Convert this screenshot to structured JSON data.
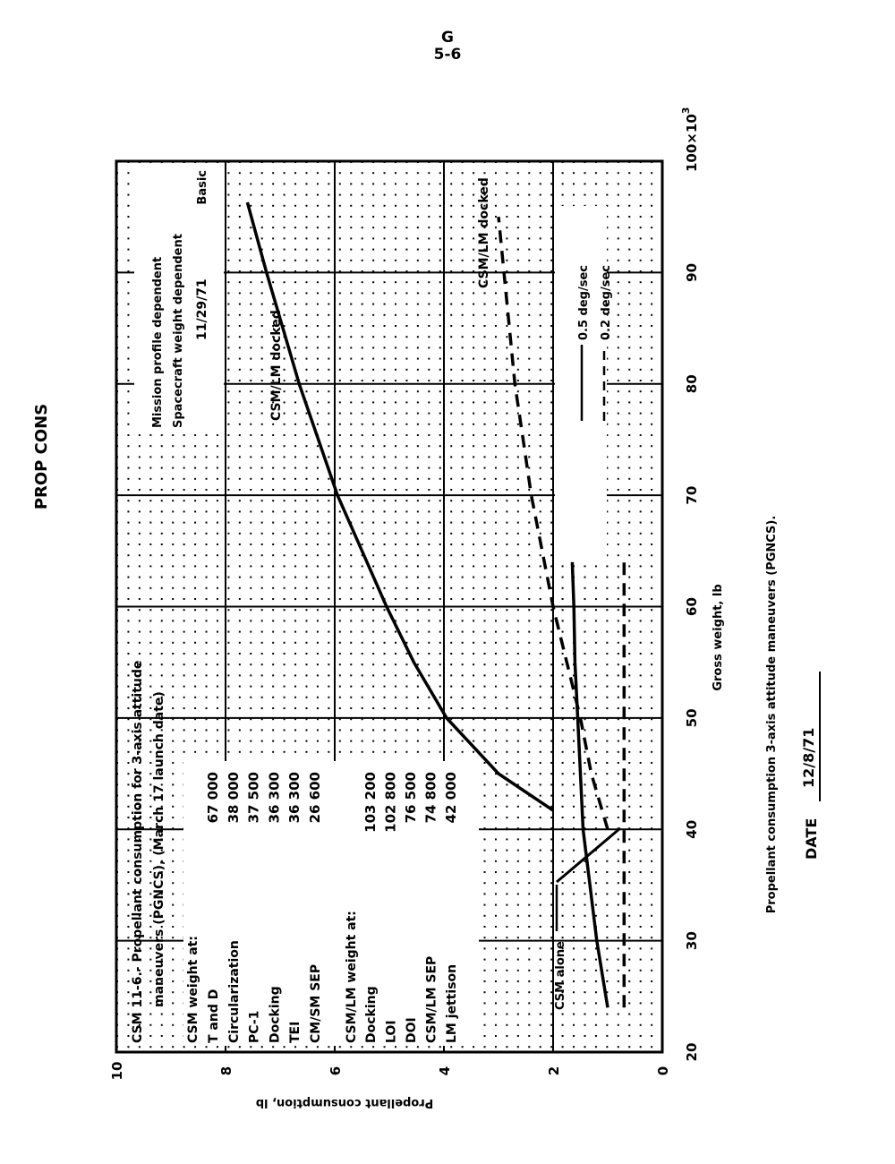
{
  "header": {
    "section_letter": "G",
    "page_number": "5-6",
    "section_title": "PROP CONS"
  },
  "footer": {
    "caption": "Propellant consumption 3-axis attitude maneuvers (PGNCS).",
    "date_label": "DATE",
    "date_value": "12/8/71"
  },
  "chart_data": {
    "type": "line",
    "orientation": "page rotated 90° counterclockwise",
    "xlabel": "Gross weight, lb",
    "ylabel": "Propellant consumption, lb",
    "x_multiplier_label": "100×10",
    "x_multiplier_exp": "3",
    "xlim": [
      20,
      100
    ],
    "ylim": [
      0,
      10
    ],
    "x_ticks": [
      "20",
      "30",
      "40",
      "50",
      "60",
      "70",
      "80",
      "90"
    ],
    "y_ticks": [
      "0",
      "2",
      "4",
      "6",
      "8",
      "10"
    ],
    "grid": true,
    "legend": {
      "placement": "top-right",
      "entries": [
        {
          "label": "0.5 deg/sec",
          "style": "solid"
        },
        {
          "label": "0.2 deg/sec",
          "style": "dashed"
        }
      ]
    },
    "series": [
      {
        "name": "CSM/LM docked",
        "rate": "0.5 deg/sec",
        "style": "solid",
        "x": [
          41.7,
          45,
          50,
          55,
          60,
          65,
          70,
          75,
          80,
          85,
          90,
          96.3
        ],
        "y": [
          2.0,
          3.0,
          3.95,
          4.55,
          5.05,
          5.5,
          5.95,
          6.3,
          6.65,
          6.95,
          7.25,
          7.6
        ]
      },
      {
        "name": "CSM/LM docked",
        "rate": "0.2 deg/sec",
        "style": "dashed",
        "x": [
          40,
          45,
          50,
          55,
          60,
          65,
          70,
          75,
          80,
          85,
          90,
          95
        ],
        "y": [
          1.0,
          1.3,
          1.5,
          1.75,
          2.0,
          2.2,
          2.4,
          2.55,
          2.7,
          2.8,
          2.9,
          3.0
        ]
      },
      {
        "name": "CSM alone",
        "rate": "0.5 deg/sec",
        "style": "solid",
        "x": [
          24,
          30,
          36,
          40,
          45,
          50,
          55,
          60,
          64
        ],
        "y": [
          1.0,
          1.2,
          1.35,
          1.45,
          1.5,
          1.55,
          1.6,
          1.62,
          1.65
        ]
      },
      {
        "name": "CSM alone",
        "rate": "0.2 deg/sec",
        "style": "dashed",
        "x": [
          24,
          40,
          64
        ],
        "y": [
          0.7,
          0.7,
          0.7
        ]
      }
    ],
    "annotations": {
      "title_line1": "CSM 11-6.- Propellant consumption for 3-axis attitude",
      "title_line2": "maneuvers (PGNCS), (March 17 launch date)",
      "csm_heading": "CSM weight at:",
      "csm_rows": [
        {
          "label": "T and D",
          "value": "67 000"
        },
        {
          "label": "Circularization",
          "value": "38 000"
        },
        {
          "label": "PC-1",
          "value": "37 500"
        },
        {
          "label": "Docking",
          "value": "36 300"
        },
        {
          "label": "TEI",
          "value": "36 300"
        },
        {
          "label": "CM/SM SEP",
          "value": "26 600"
        }
      ],
      "csmlm_heading": "CSM/LM weight at:",
      "csmlm_rows": [
        {
          "label": "Docking",
          "value": "103 200"
        },
        {
          "label": "LOI",
          "value": "102 800"
        },
        {
          "label": "DOI",
          "value": "76 500"
        },
        {
          "label": "CSM/LM SEP",
          "value": "74 800"
        },
        {
          "label": "LM jettison",
          "value": "42 000"
        }
      ],
      "note1": "Mission profile dependent",
      "note2": "Spacecraft weight dependent",
      "revision_date": "11/29/71",
      "revision_type": "Basic",
      "label_csmlm_solid": "CSM/LM docked",
      "label_csmlm_dashed": "CSM/LM docked",
      "label_csm_alone": "CSM alone"
    }
  }
}
